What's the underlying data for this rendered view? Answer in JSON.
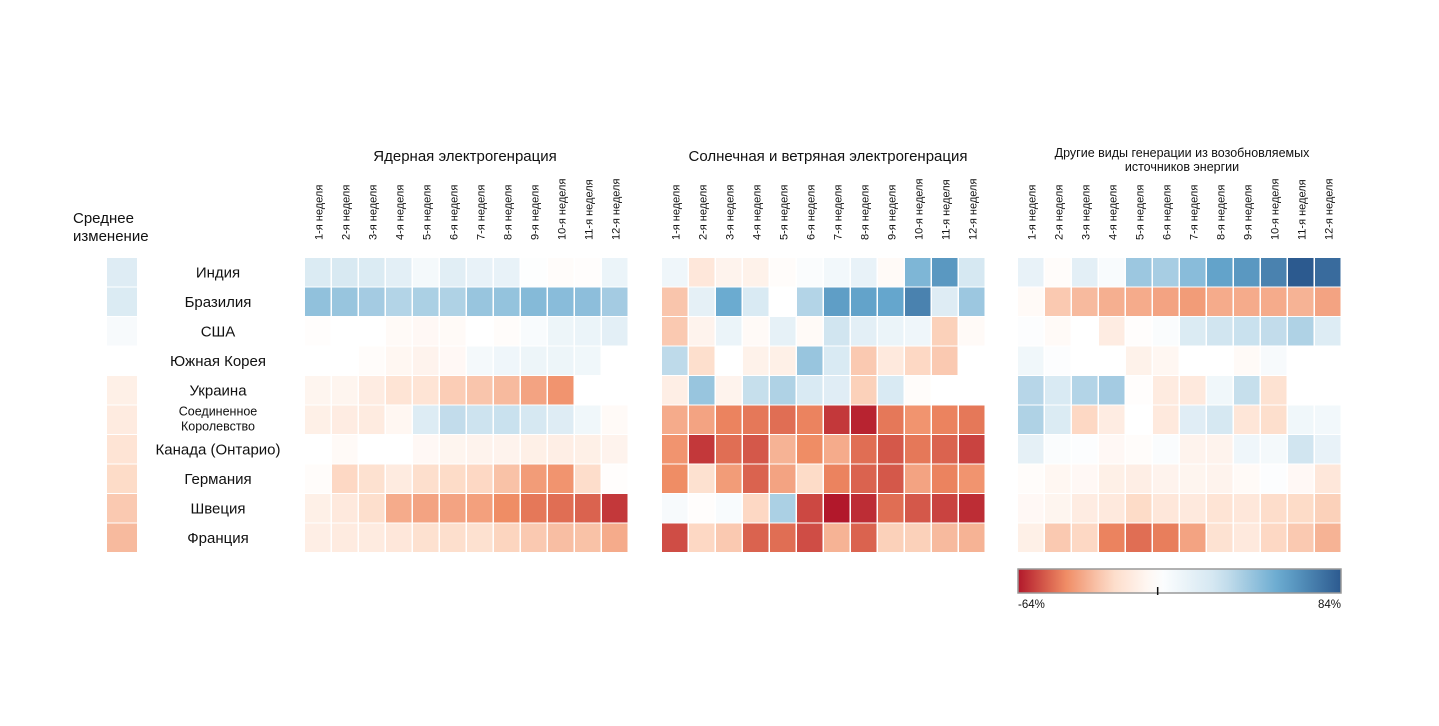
{
  "chart_data": {
    "type": "heatmap",
    "row_header": [
      "Среднее",
      "изменение"
    ],
    "countries": [
      [
        "Индия"
      ],
      [
        "Бразилия"
      ],
      [
        "США"
      ],
      [
        "Южная Корея"
      ],
      [
        "Украина"
      ],
      [
        "Соединенное",
        "Королевство"
      ],
      [
        "Канада (Онтарио)"
      ],
      [
        "Германия"
      ],
      [
        "Швеция"
      ],
      [
        "Франция"
      ]
    ],
    "average_change": [
      20,
      22,
      5,
      0,
      -9,
      -12,
      -16,
      -21,
      -26,
      -30
    ],
    "weeks": [
      "1-я неделя",
      "2-я неделя",
      "3-я неделя",
      "4-я неделя",
      "5-я неделя",
      "6-я неделя",
      "7-я неделя",
      "8-я неделя",
      "9-я неделя",
      "10-я неделя",
      "11-я неделя",
      "12-я неделя"
    ],
    "panels": [
      {
        "title": [
          "Ядерная электрогенрация"
        ],
        "values": [
          [
            22,
            24,
            22,
            17,
            7,
            18,
            14,
            14,
            1,
            -2,
            -1,
            12
          ],
          [
            45,
            43,
            40,
            36,
            38,
            37,
            43,
            44,
            48,
            47,
            46,
            40
          ],
          [
            -1,
            0,
            0,
            -3,
            -4,
            -3,
            0,
            -2,
            4,
            11,
            12,
            17
          ],
          [
            0,
            0,
            -2,
            -5,
            -7,
            -4,
            7,
            10,
            11,
            11,
            9,
            null
          ],
          [
            -6,
            -6,
            -11,
            -16,
            -16,
            -25,
            -27,
            -30,
            -36,
            -40,
            null,
            null
          ],
          [
            -9,
            -11,
            -12,
            -5,
            21,
            32,
            29,
            30,
            25,
            20,
            9,
            -3
          ],
          [
            0,
            -3,
            0,
            0,
            -4,
            -6,
            -7,
            -7,
            -9,
            -10,
            -9,
            -7
          ],
          [
            -2,
            -22,
            -18,
            -12,
            -19,
            -21,
            -22,
            -28,
            -38,
            -40,
            -20,
            -1
          ],
          [
            -9,
            -13,
            -19,
            -34,
            -36,
            -36,
            -37,
            -42,
            -46,
            -48,
            -50,
            -58
          ],
          [
            -10,
            -12,
            -12,
            -14,
            -18,
            -19,
            -18,
            -23,
            -26,
            -29,
            -28,
            -34
          ]
        ]
      },
      {
        "title": [
          "Солнечная и ветряная электрогенрация"
        ],
        "values": [
          [
            10,
            -14,
            -7,
            -8,
            -2,
            3,
            8,
            14,
            -3,
            50,
            62,
            25
          ],
          [
            -27,
            16,
            55,
            23,
            0,
            36,
            60,
            58,
            57,
            70,
            20,
            42
          ],
          [
            -26,
            -7,
            12,
            -3,
            15,
            -3,
            28,
            17,
            12,
            10,
            -24,
            -3
          ],
          [
            33,
            -19,
            0,
            -8,
            -9,
            43,
            23,
            -26,
            -13,
            -22,
            -26,
            null
          ],
          [
            -10,
            43,
            -7,
            31,
            37,
            23,
            19,
            -24,
            23,
            -2,
            null,
            null
          ],
          [
            -34,
            -36,
            -44,
            -46,
            -48,
            -44,
            -58,
            -62,
            -46,
            -40,
            -44,
            -46
          ],
          [
            -40,
            -58,
            -48,
            -52,
            -32,
            -42,
            -34,
            -48,
            -52,
            -46,
            -50,
            -56
          ],
          [
            -42,
            -18,
            -38,
            -50,
            -36,
            -21,
            -44,
            -50,
            -52,
            -36,
            -44,
            -40
          ],
          [
            5,
            -1,
            4,
            -22,
            38,
            -55,
            -64,
            -60,
            -48,
            -52,
            -56,
            -60
          ],
          [
            -54,
            -22,
            -26,
            -50,
            -48,
            -54,
            -32,
            -50,
            -24,
            -24,
            -30,
            -32
          ]
        ]
      },
      {
        "title": [
          "Другие виды генерации из возобновляемых",
          "источников энергии"
        ],
        "values": [
          [
            14,
            -2,
            17,
            4,
            42,
            39,
            47,
            58,
            62,
            70,
            84,
            78
          ],
          [
            -3,
            -26,
            -30,
            -33,
            -34,
            -36,
            -38,
            -34,
            -34,
            -34,
            -32,
            -36
          ],
          [
            2,
            -3,
            0,
            -11,
            -1,
            3,
            22,
            28,
            30,
            32,
            37,
            21
          ],
          [
            9,
            2,
            0,
            0,
            -8,
            -5,
            0,
            0,
            -3,
            5,
            null,
            null
          ],
          [
            35,
            23,
            36,
            40,
            -1,
            -12,
            -13,
            9,
            31,
            -17,
            null,
            null
          ],
          [
            37,
            22,
            -22,
            -11,
            0,
            -13,
            19,
            25,
            -15,
            -19,
            9,
            8
          ],
          [
            16,
            3,
            2,
            -4,
            -2,
            3,
            -7,
            -7,
            10,
            7,
            28,
            14
          ],
          [
            -2,
            -5,
            -4,
            -9,
            -10,
            -7,
            -6,
            -7,
            -3,
            2,
            -4,
            -14
          ],
          [
            -4,
            -6,
            -11,
            -13,
            -21,
            -14,
            -13,
            -16,
            -14,
            -20,
            -21,
            -24
          ],
          [
            -9,
            -26,
            -22,
            -44,
            -48,
            -45,
            -36,
            -17,
            -13,
            -22,
            -26,
            -32
          ]
        ]
      }
    ],
    "colorscale": {
      "min": -64,
      "max": 84,
      "min_label": "-64%",
      "max_label": "84%",
      "colors": [
        "#b2182b",
        "#ef8a62",
        "#fddbc7",
        "#ffffff",
        "#d1e5f0",
        "#67a9cf",
        "#2c5a8f"
      ]
    }
  }
}
